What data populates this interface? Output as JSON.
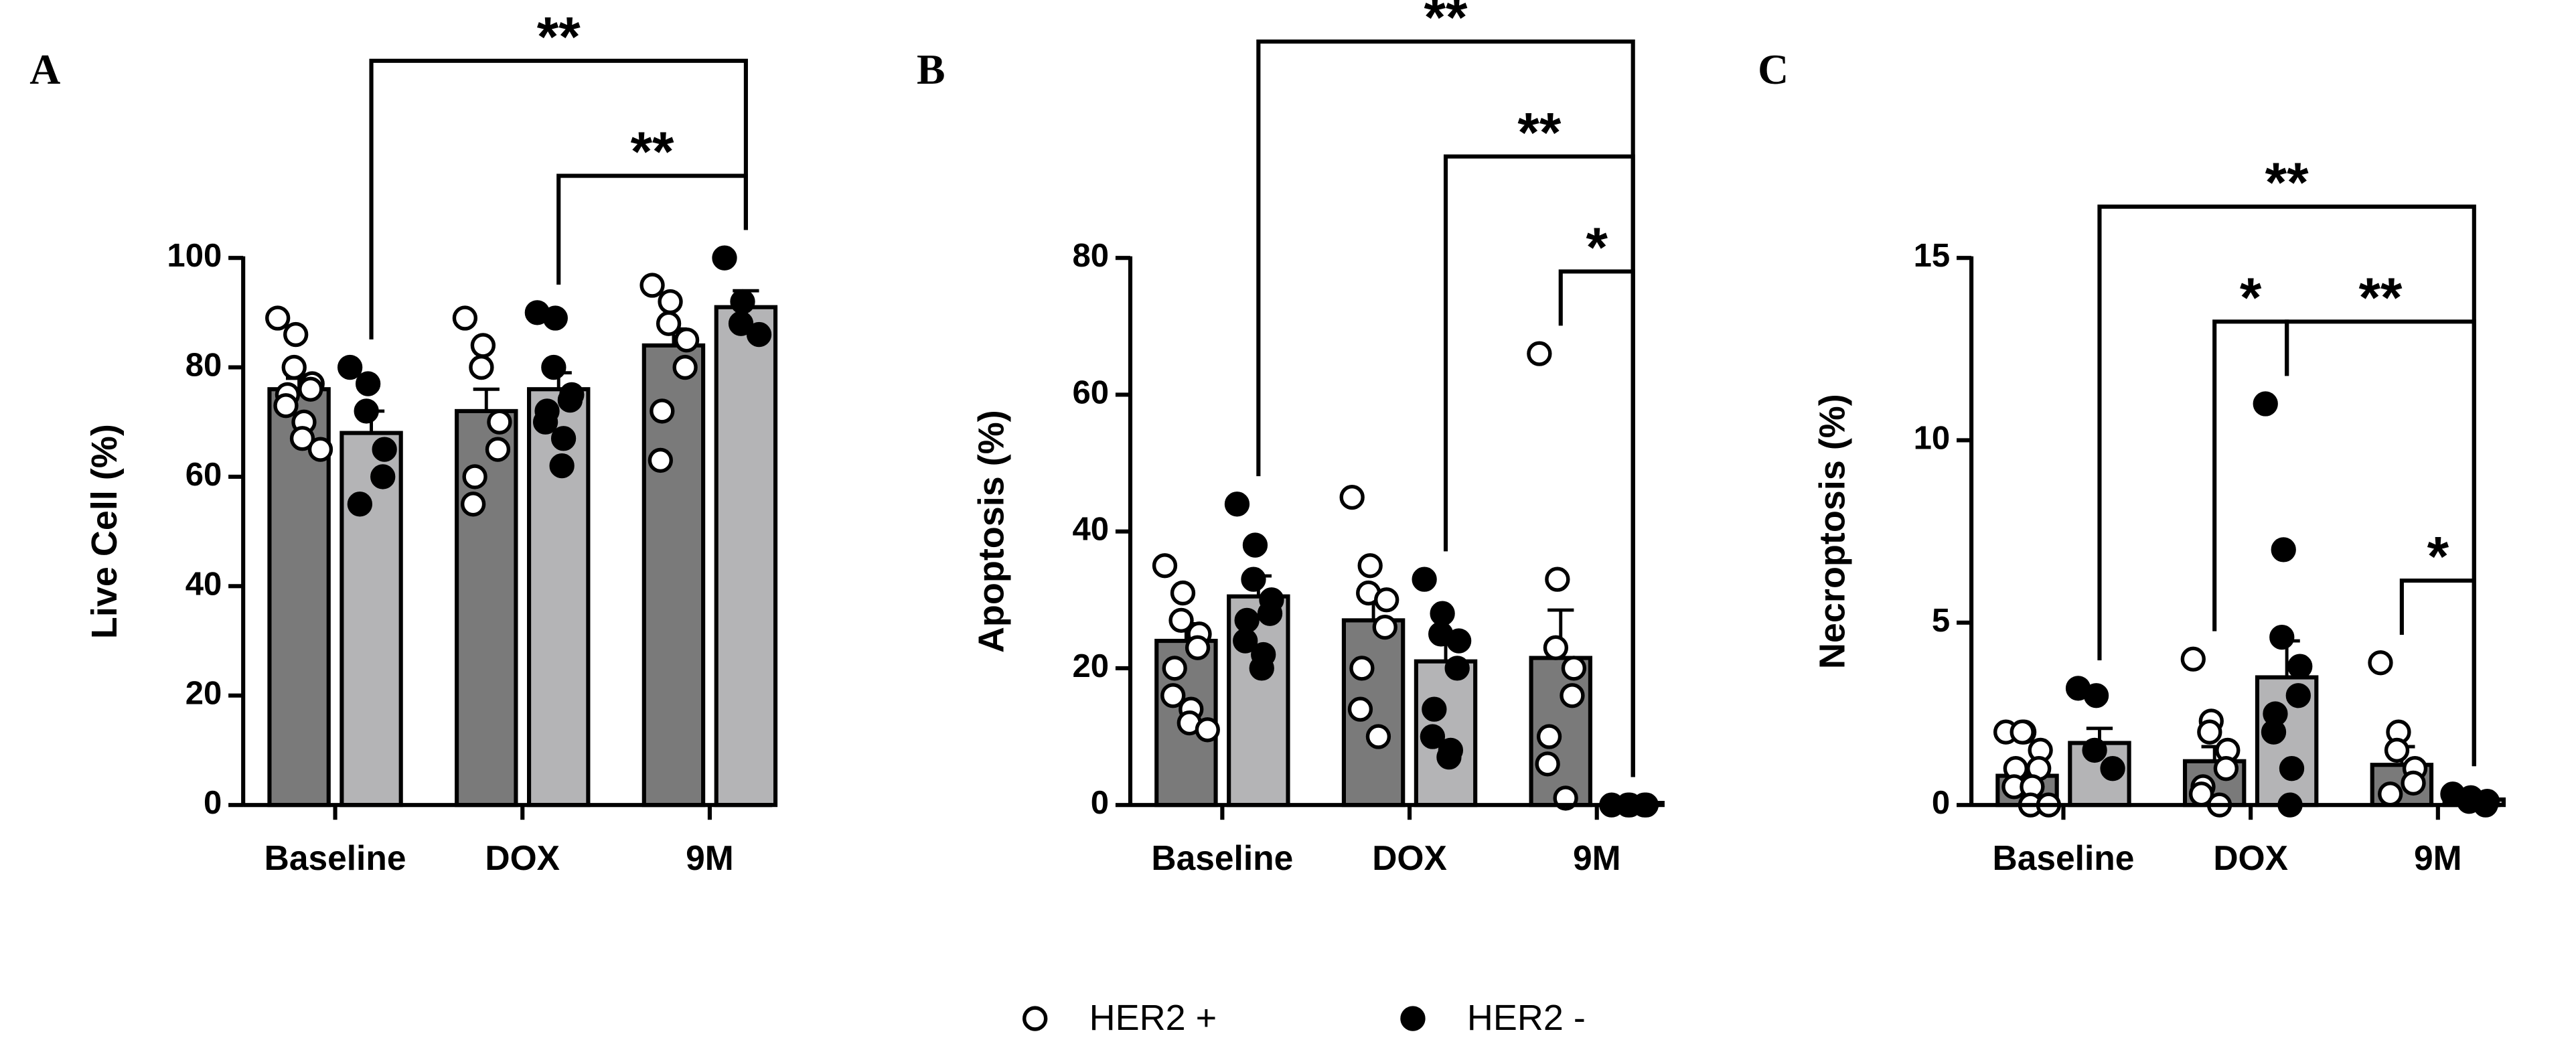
{
  "chart_data": [
    {
      "type": "bar",
      "panel": "A",
      "ylabel": "Live Cell (%)",
      "categories": [
        "Baseline",
        "DOX",
        "9M"
      ],
      "ylim": [
        0,
        100
      ],
      "yticks": [
        0,
        20,
        40,
        60,
        80,
        100
      ],
      "series": [
        {
          "name": "HER2 +",
          "color": "#7a7a7a",
          "marker": "open",
          "values": [
            76,
            72,
            84
          ],
          "errors": [
            2,
            4,
            3
          ],
          "points": [
            [
              89,
              86,
              80,
              77,
              76,
              75,
              73,
              70,
              67,
              65
            ],
            [
              89,
              84,
              80,
              70,
              65,
              60,
              55
            ],
            [
              95,
              92,
              88,
              85,
              80,
              72,
              63
            ]
          ]
        },
        {
          "name": "HER2 -",
          "color": "#b4b4b6",
          "marker": "filled",
          "values": [
            68,
            76,
            91
          ],
          "errors": [
            4,
            3,
            3
          ],
          "points": [
            [
              80,
              77,
              72,
              65,
              60,
              55
            ],
            [
              90,
              89,
              80,
              75,
              74,
              72,
              70,
              67,
              62
            ],
            [
              100,
              92,
              88,
              86
            ]
          ]
        }
      ],
      "brackets": [
        {
          "from": [
            0,
            1
          ],
          "to": [
            2,
            1
          ],
          "label": "**"
        },
        {
          "from": [
            1,
            1
          ],
          "to": [
            2,
            1
          ],
          "label": "**"
        }
      ]
    },
    {
      "type": "bar",
      "panel": "B",
      "ylabel": "Apoptosis (%)",
      "categories": [
        "Baseline",
        "DOX",
        "9M"
      ],
      "ylim": [
        0,
        80
      ],
      "yticks": [
        0,
        20,
        40,
        60,
        80
      ],
      "series": [
        {
          "color": "#7a7a7a",
          "marker": "open",
          "values": [
            24,
            27,
            21.5
          ],
          "errors": [
            2.5,
            3.5,
            7
          ],
          "points": [
            [
              35,
              31,
              27,
              25,
              23,
              20,
              16,
              14,
              12,
              11
            ],
            [
              45,
              35,
              31,
              30,
              26,
              20,
              14,
              10
            ],
            [
              66,
              33,
              23,
              20,
              16,
              10,
              6,
              1
            ]
          ]
        },
        {
          "color": "#b4b4b6",
          "marker": "filled",
          "values": [
            30.5,
            21,
            0.3
          ],
          "errors": [
            3,
            3,
            0.1
          ],
          "points": [
            [
              44,
              38,
              33,
              30,
              28,
              27,
              24,
              22,
              20
            ],
            [
              33,
              28,
              25,
              24,
              20,
              14,
              10,
              8,
              7
            ],
            [
              0,
              0,
              0,
              0,
              0
            ]
          ]
        }
      ],
      "brackets": [
        {
          "from": [
            0,
            1
          ],
          "to": [
            2,
            1
          ],
          "label": "**"
        },
        {
          "from": [
            1,
            1
          ],
          "to": [
            2,
            1
          ],
          "label": "**"
        },
        {
          "from": [
            2,
            0
          ],
          "to": [
            2,
            1
          ],
          "label": "*"
        }
      ]
    },
    {
      "type": "bar",
      "panel": "C",
      "ylabel": "Necroptosis (%)",
      "categories": [
        "Baseline",
        "DOX",
        "9M"
      ],
      "ylim": [
        0,
        15
      ],
      "yticks": [
        0,
        5,
        10,
        15
      ],
      "series": [
        {
          "color": "#7a7a7a",
          "marker": "open",
          "values": [
            0.8,
            1.2,
            1.1
          ],
          "errors": [
            0.25,
            0.4,
            0.5
          ],
          "points": [
            [
              2,
              2,
              2,
              1.5,
              1,
              1,
              0.5,
              0.5,
              0,
              0
            ],
            [
              4,
              2.3,
              2,
              1.5,
              1,
              0.5,
              0.3,
              0
            ],
            [
              3.9,
              2,
              1.5,
              1,
              0.6,
              0.3
            ]
          ]
        },
        {
          "color": "#b4b4b6",
          "marker": "filled",
          "values": [
            1.7,
            3.5,
            0.15
          ],
          "errors": [
            0.4,
            1,
            0.05
          ],
          "points": [
            [
              3.2,
              3,
              1.5,
              1
            ],
            [
              11,
              7,
              4.6,
              3.8,
              3,
              2.5,
              2,
              1,
              0
            ],
            [
              0.3,
              0.2,
              0.1,
              0.1,
              0
            ]
          ]
        }
      ],
      "brackets": [
        {
          "from": [
            0,
            1
          ],
          "to": [
            2,
            1
          ],
          "label": "**"
        },
        {
          "from": [
            1,
            0
          ],
          "to": [
            1,
            1
          ],
          "label": "*"
        },
        {
          "from": [
            1,
            1
          ],
          "to": [
            2,
            1
          ],
          "label": "**"
        },
        {
          "from": [
            2,
            0
          ],
          "to": [
            2,
            1
          ],
          "label": "*"
        }
      ]
    }
  ]
}
